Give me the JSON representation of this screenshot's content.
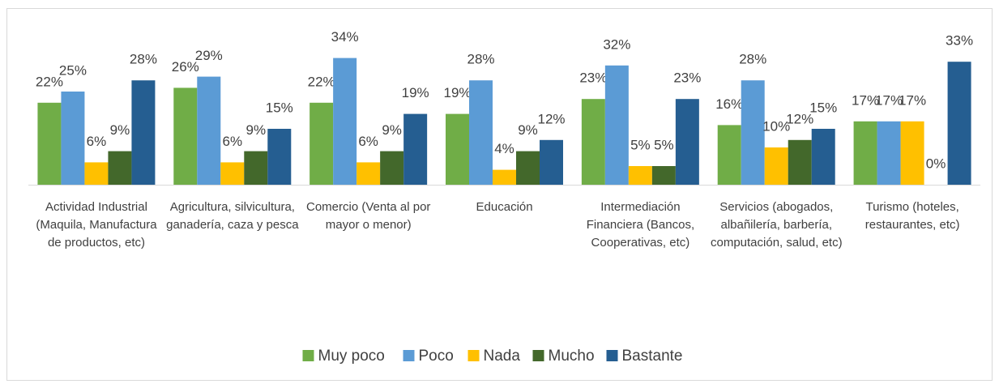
{
  "chart_data": {
    "type": "bar",
    "categories": [
      "Actividad Industrial (Maquila, Manufactura de productos, etc)",
      "Agricultura, silvicultura, ganadería, caza y pesca",
      "Comercio (Venta al por mayor o menor)",
      "Educación",
      "Intermediación Financiera (Bancos, Cooperativas, etc)",
      "Servicios (abogados, albañilería, barbería, computación, salud, etc)",
      "Turismo (hoteles, restaurantes, etc)"
    ],
    "series": [
      {
        "name": "Muy poco",
        "color": "#70ad47",
        "values": [
          22,
          26,
          22,
          19,
          23,
          16,
          17
        ],
        "value_labels": [
          "22%",
          "26%",
          "22%",
          "19%",
          "23%",
          "16%",
          "17%"
        ]
      },
      {
        "name": "Poco",
        "color": "#5b9bd5",
        "values": [
          25,
          29,
          34,
          28,
          32,
          28,
          17
        ],
        "value_labels": [
          "25%",
          "29%",
          "34%",
          "28%",
          "32%",
          "28%",
          "17%"
        ]
      },
      {
        "name": "Nada",
        "color": "#ffc000",
        "values": [
          6,
          6,
          6,
          4,
          5,
          10,
          17
        ],
        "value_labels": [
          "6%",
          "6%",
          "6%",
          "4%",
          "5%",
          "10%",
          "17%"
        ]
      },
      {
        "name": "Mucho",
        "color": "#43682b",
        "values": [
          9,
          9,
          9,
          9,
          5,
          12,
          0
        ],
        "value_labels": [
          "9%",
          "9%",
          "9%",
          "9%",
          "5%",
          "12%",
          "0%"
        ]
      },
      {
        "name": "Bastante",
        "color": "#255e91",
        "values": [
          28,
          15,
          19,
          12,
          23,
          15,
          33
        ],
        "value_labels": [
          "28%",
          "15%",
          "19%",
          "12%",
          "23%",
          "15%",
          "33%"
        ]
      }
    ],
    "legend": "bottom"
  }
}
